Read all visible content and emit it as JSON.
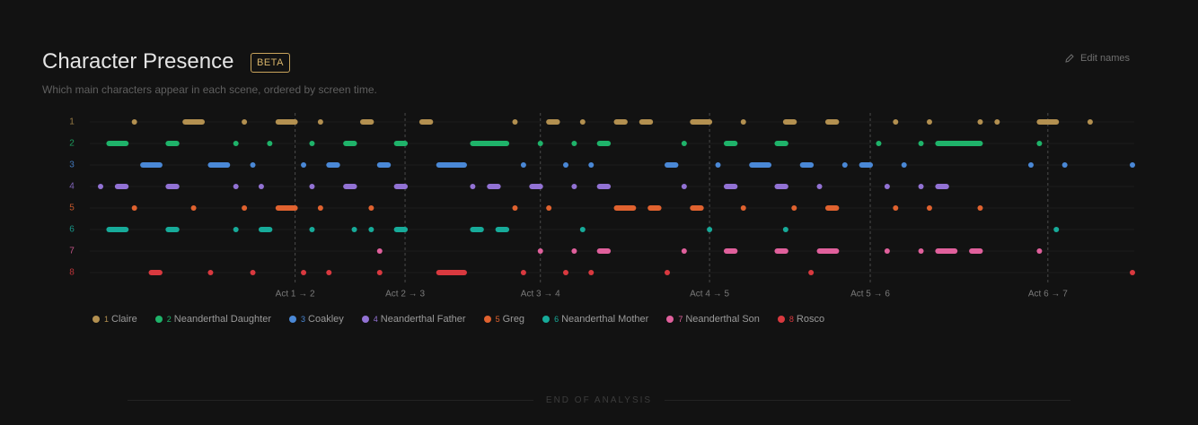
{
  "header": {
    "title": "Character Presence",
    "badge": "BETA",
    "subtitle": "Which main characters appear in each scene, ordered by screen time.",
    "action": "Edit names"
  },
  "chart_data": {
    "type": "timeline",
    "xlim": [
      0,
      122
    ],
    "markers": [
      {
        "value": 23,
        "label": "Act 1 → 2"
      },
      {
        "value": 36,
        "label": "Act 2 → 3"
      },
      {
        "value": 52,
        "label": "Act 3 → 4"
      },
      {
        "value": 72,
        "label": "Act 4 → 5"
      },
      {
        "value": 91,
        "label": "Act 5 → 6"
      },
      {
        "value": 112,
        "label": "Act 6 → 7"
      }
    ],
    "grid": true,
    "series": [
      {
        "label": "1",
        "name": "Claire",
        "color": "#b39050",
        "segments": [
          [
            4,
            4
          ],
          [
            10,
            12
          ],
          [
            17,
            17
          ],
          [
            21,
            23
          ],
          [
            26,
            26
          ],
          [
            31,
            32
          ],
          [
            38,
            39
          ],
          [
            49,
            49
          ],
          [
            53,
            54
          ],
          [
            57,
            57
          ],
          [
            61,
            62
          ],
          [
            64,
            65
          ],
          [
            70,
            72
          ],
          [
            76,
            76
          ],
          [
            81,
            82
          ],
          [
            86,
            87
          ],
          [
            94,
            94
          ],
          [
            98,
            98
          ],
          [
            104,
            104
          ],
          [
            106,
            106
          ],
          [
            111,
            113
          ],
          [
            117,
            117
          ]
        ]
      },
      {
        "label": "2",
        "name": "Neanderthal Daughter",
        "color": "#1fb36a",
        "segments": [
          [
            1,
            3
          ],
          [
            8,
            9
          ],
          [
            16,
            16
          ],
          [
            20,
            20
          ],
          [
            25,
            25
          ],
          [
            29,
            30
          ],
          [
            35,
            36
          ],
          [
            44,
            48
          ],
          [
            52,
            52
          ],
          [
            56,
            56
          ],
          [
            59,
            60
          ],
          [
            69,
            69
          ],
          [
            74,
            75
          ],
          [
            80,
            81
          ],
          [
            92,
            92
          ],
          [
            97,
            97
          ],
          [
            99,
            104
          ],
          [
            111,
            111
          ]
        ]
      },
      {
        "label": "3",
        "name": "Coakley",
        "color": "#4a88d6",
        "segments": [
          [
            5,
            7
          ],
          [
            13,
            15
          ],
          [
            18,
            18
          ],
          [
            24,
            24
          ],
          [
            27,
            28
          ],
          [
            33,
            34
          ],
          [
            40,
            43
          ],
          [
            50,
            50
          ],
          [
            55,
            55
          ],
          [
            58,
            58
          ],
          [
            67,
            68
          ],
          [
            73,
            73
          ],
          [
            77,
            79
          ],
          [
            83,
            84
          ],
          [
            88,
            88
          ],
          [
            90,
            91
          ],
          [
            95,
            95
          ],
          [
            110,
            110
          ],
          [
            114,
            114
          ],
          [
            122,
            122
          ]
        ]
      },
      {
        "label": "4",
        "name": "Neanderthal Father",
        "color": "#9272d4",
        "segments": [
          [
            0,
            0
          ],
          [
            2,
            3
          ],
          [
            8,
            9
          ],
          [
            16,
            16
          ],
          [
            19,
            19
          ],
          [
            25,
            25
          ],
          [
            29,
            30
          ],
          [
            35,
            36
          ],
          [
            44,
            44
          ],
          [
            46,
            47
          ],
          [
            51,
            52
          ],
          [
            56,
            56
          ],
          [
            59,
            60
          ],
          [
            69,
            69
          ],
          [
            74,
            75
          ],
          [
            80,
            81
          ],
          [
            85,
            85
          ],
          [
            93,
            93
          ],
          [
            97,
            97
          ],
          [
            99,
            100
          ]
        ]
      },
      {
        "label": "5",
        "name": "Greg",
        "color": "#e0622f",
        "segments": [
          [
            4,
            4
          ],
          [
            11,
            11
          ],
          [
            17,
            17
          ],
          [
            21,
            23
          ],
          [
            26,
            26
          ],
          [
            32,
            32
          ],
          [
            49,
            49
          ],
          [
            53,
            53
          ],
          [
            61,
            63
          ],
          [
            65,
            66
          ],
          [
            70,
            71
          ],
          [
            76,
            76
          ],
          [
            82,
            82
          ],
          [
            86,
            87
          ],
          [
            94,
            94
          ],
          [
            98,
            98
          ],
          [
            104,
            104
          ]
        ]
      },
      {
        "label": "6",
        "name": "Neanderthal Mother",
        "color": "#17ab9a",
        "segments": [
          [
            1,
            3
          ],
          [
            8,
            9
          ],
          [
            16,
            16
          ],
          [
            19,
            20
          ],
          [
            25,
            25
          ],
          [
            30,
            30
          ],
          [
            32,
            32
          ],
          [
            35,
            36
          ],
          [
            44,
            45
          ],
          [
            47,
            48
          ],
          [
            57,
            57
          ],
          [
            72,
            72
          ],
          [
            81,
            81
          ],
          [
            113,
            113
          ]
        ]
      },
      {
        "label": "7",
        "name": "Neanderthal Son",
        "color": "#e0609c",
        "segments": [
          [
            33,
            33
          ],
          [
            52,
            52
          ],
          [
            56,
            56
          ],
          [
            59,
            60
          ],
          [
            69,
            69
          ],
          [
            74,
            75
          ],
          [
            80,
            81
          ],
          [
            85,
            87
          ],
          [
            93,
            93
          ],
          [
            97,
            97
          ],
          [
            99,
            101
          ],
          [
            103,
            104
          ],
          [
            111,
            111
          ]
        ]
      },
      {
        "label": "8",
        "name": "Rosco",
        "color": "#d9393f",
        "segments": [
          [
            6,
            7
          ],
          [
            13,
            13
          ],
          [
            18,
            18
          ],
          [
            24,
            24
          ],
          [
            27,
            27
          ],
          [
            33,
            33
          ],
          [
            40,
            43
          ],
          [
            50,
            50
          ],
          [
            55,
            55
          ],
          [
            58,
            58
          ],
          [
            67,
            67
          ],
          [
            84,
            84
          ],
          [
            122,
            122
          ]
        ]
      }
    ]
  },
  "footer": "END OF ANALYSIS"
}
